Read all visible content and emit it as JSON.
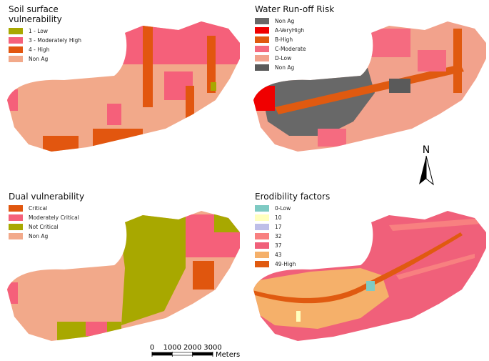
{
  "maps": [
    {
      "title": "Soil surface vulnerability",
      "legend": [
        {
          "label": "1 - Low",
          "color": "#a8a800"
        },
        {
          "label": "3 - Moderately High",
          "color": "#f5607a"
        },
        {
          "label": "4 - High",
          "color": "#e2560f"
        },
        {
          "label": "Non Ag",
          "color": "#f2a98a"
        }
      ]
    },
    {
      "title": "Water Run-off Risk",
      "legend": [
        {
          "label": "Non Ag",
          "color": "#686868"
        },
        {
          "label": "A-VeryHigh",
          "color": "#f00000"
        },
        {
          "label": "B-High",
          "color": "#e05a10"
        },
        {
          "label": "C-Moderate",
          "color": "#f56b80"
        },
        {
          "label": "D-Low",
          "color": "#f2a28c"
        },
        {
          "label": "Non Ag",
          "color": "#5a5a5a"
        }
      ]
    },
    {
      "title": "Dual vulnerability",
      "legend": [
        {
          "label": "Critical",
          "color": "#e0560e"
        },
        {
          "label": "Moderately Critical",
          "color": "#f5607a"
        },
        {
          "label": "Not Critical",
          "color": "#a8a800"
        },
        {
          "label": "Non Ag",
          "color": "#f2a98a"
        }
      ]
    },
    {
      "title": "Erodibility factors",
      "legend": [
        {
          "label": "0-Low",
          "color": "#7ecac3"
        },
        {
          "label": "10",
          "color": "#ffffbe"
        },
        {
          "label": "17",
          "color": "#bebee8"
        },
        {
          "label": "32",
          "color": "#f88080"
        },
        {
          "label": "37",
          "color": "#f0607a"
        },
        {
          "label": "43",
          "color": "#f5b06a"
        },
        {
          "label": "49-High",
          "color": "#e05a10"
        }
      ]
    }
  ],
  "scale_bar": {
    "ticks": [
      0,
      1000,
      2000,
      3000
    ],
    "unit": "Meters"
  },
  "north_label": "N"
}
